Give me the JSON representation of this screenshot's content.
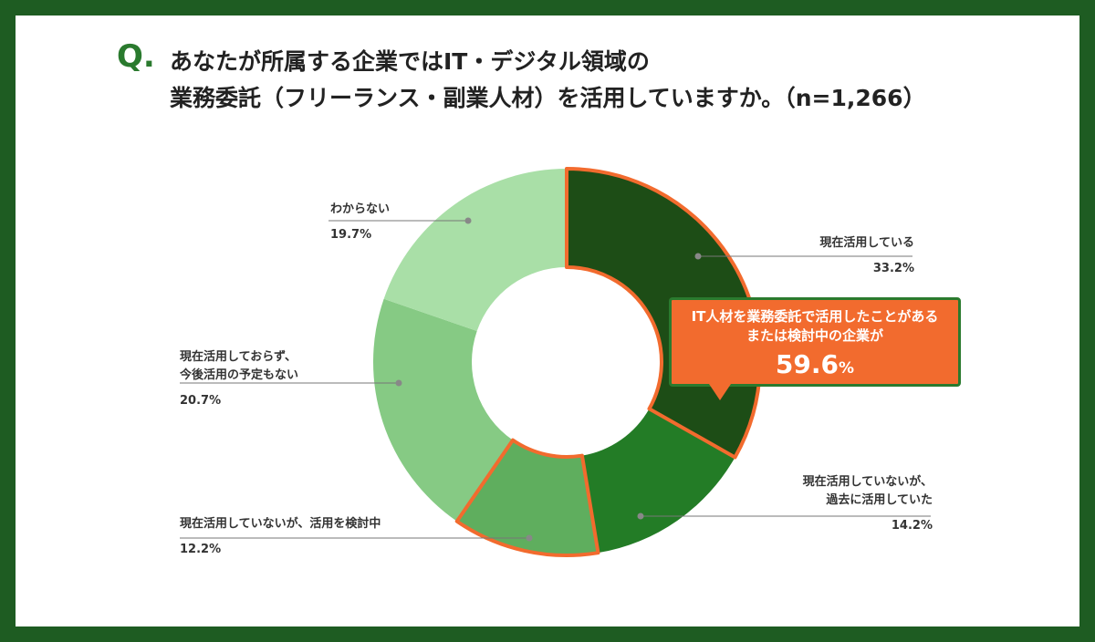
{
  "question": {
    "mark": "Q.",
    "line1": "あなたが所属する企業ではIT・デジタル領域の",
    "line2": "業務委託（フリーランス・副業人材）を活用していますか。（n=1,266）"
  },
  "chart_data": {
    "type": "pie",
    "donut": true,
    "start": "12 o'clock",
    "direction": "clockwise",
    "legend": "none",
    "slices": [
      {
        "label": "現在活用している",
        "value": 33.2,
        "display": "33.2%",
        "color": "#1d4d16",
        "highlight": true
      },
      {
        "label": "現在活用していないが、過去に活用していた",
        "value": 14.2,
        "display": "14.2%",
        "color": "#237c26",
        "highlight": false
      },
      {
        "label": "現在活用していないが、活用を検討中",
        "value": 12.2,
        "display": "12.2%",
        "color": "#5fae5e",
        "highlight": true
      },
      {
        "label": "現在活用しておらず、今後活用の予定もない",
        "value": 20.7,
        "display": "20.7%",
        "color": "#86ca84",
        "highlight": false
      },
      {
        "label": "わからない",
        "value": 19.7,
        "display": "19.7%",
        "color": "#a9dfa7",
        "highlight": false
      }
    ],
    "highlight_color": "#f26b2e"
  },
  "labels": {
    "s0": {
      "lines": [
        "現在活用している"
      ],
      "pct": "33.2%"
    },
    "s1": {
      "lines": [
        "現在活用していないが、",
        "過去に活用していた"
      ],
      "pct": "14.2%"
    },
    "s2": {
      "lines": [
        "現在活用していないが、活用を検討中"
      ],
      "pct": "12.2%"
    },
    "s3": {
      "lines": [
        "現在活用しておらず、",
        "今後活用の予定もない"
      ],
      "pct": "20.7%"
    },
    "s4": {
      "lines": [
        "わからない"
      ],
      "pct": "19.7%"
    }
  },
  "callout": {
    "line1": "IT人材を業務委託で活用したことがある",
    "line2": "または検討中の企業が",
    "value": "59.6",
    "unit": "%"
  }
}
